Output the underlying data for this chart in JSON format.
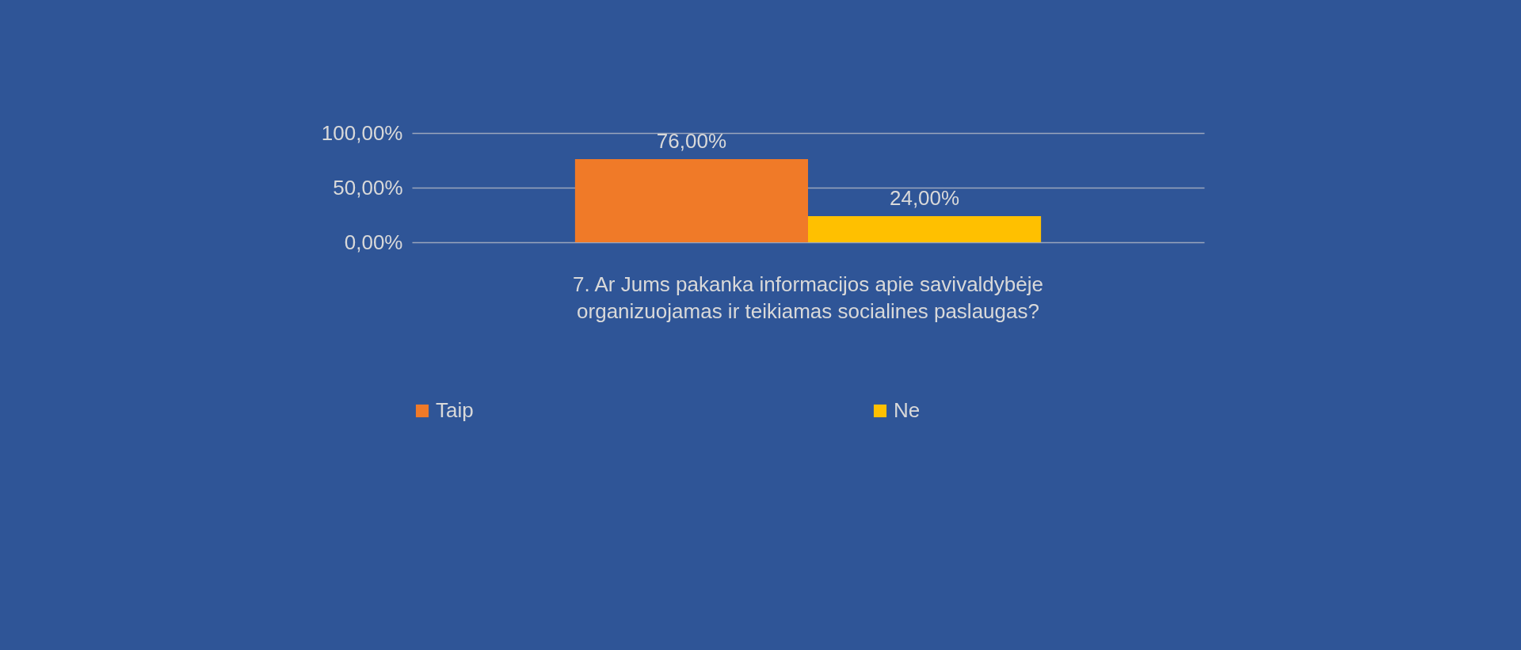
{
  "chart_data": {
    "type": "bar",
    "categories": [
      "7. Ar Jums pakanka informacijos apie savivaldybėje organizuojamas ir teikiamas socialines paslaugas?"
    ],
    "series": [
      {
        "name": "Taip",
        "color": "#f07a28",
        "values": [
          76
        ],
        "value_labels": [
          "76,00%"
        ]
      },
      {
        "name": "Ne",
        "color": "#ffc000",
        "values": [
          24
        ],
        "value_labels": [
          "24,00%"
        ]
      }
    ],
    "ylim": [
      0,
      100
    ],
    "yticks": [
      {
        "value": 0,
        "label": "0,00%"
      },
      {
        "value": 50,
        "label": "50,00%"
      },
      {
        "value": 100,
        "label": "100,00%"
      }
    ],
    "grid": "y",
    "legend": "bottom"
  }
}
